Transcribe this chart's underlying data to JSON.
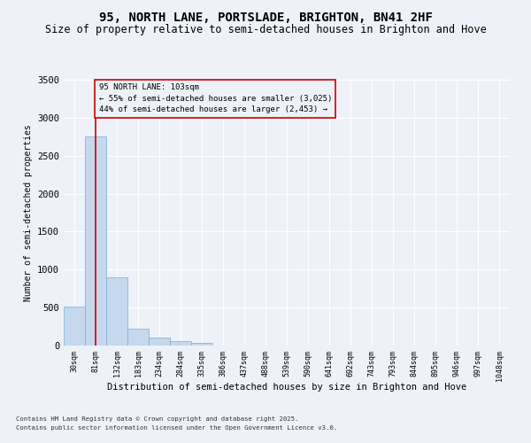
{
  "title": "95, NORTH LANE, PORTSLADE, BRIGHTON, BN41 2HF",
  "subtitle": "Size of property relative to semi-detached houses in Brighton and Hove",
  "xlabel": "Distribution of semi-detached houses by size in Brighton and Hove",
  "ylabel": "Number of semi-detached properties",
  "bin_labels": [
    "30sqm",
    "81sqm",
    "132sqm",
    "183sqm",
    "234sqm",
    "284sqm",
    "335sqm",
    "386sqm",
    "437sqm",
    "488sqm",
    "539sqm",
    "590sqm",
    "641sqm",
    "692sqm",
    "743sqm",
    "793sqm",
    "844sqm",
    "895sqm",
    "946sqm",
    "997sqm",
    "1048sqm"
  ],
  "bar_values": [
    510,
    2750,
    900,
    220,
    110,
    55,
    30,
    5,
    0,
    0,
    0,
    0,
    0,
    0,
    0,
    0,
    0,
    0,
    0,
    0,
    0
  ],
  "bar_color": "#c5d8ed",
  "bar_edge_color": "#7aaed1",
  "vline_x": 1.0,
  "vline_color": "#cc0000",
  "annotation_title": "95 NORTH LANE: 103sqm",
  "annotation_line1": "← 55% of semi-detached houses are smaller (3,025)",
  "annotation_line2": "44% of semi-detached houses are larger (2,453) →",
  "annotation_box_color": "#cc0000",
  "ylim": [
    0,
    3500
  ],
  "yticks": [
    0,
    500,
    1000,
    1500,
    2000,
    2500,
    3000,
    3500
  ],
  "footnote1": "Contains HM Land Registry data © Crown copyright and database right 2025.",
  "footnote2": "Contains public sector information licensed under the Open Government Licence v3.0.",
  "bg_color": "#eef2f8",
  "grid_color": "#ffffff",
  "title_fontsize": 10,
  "subtitle_fontsize": 8.5
}
